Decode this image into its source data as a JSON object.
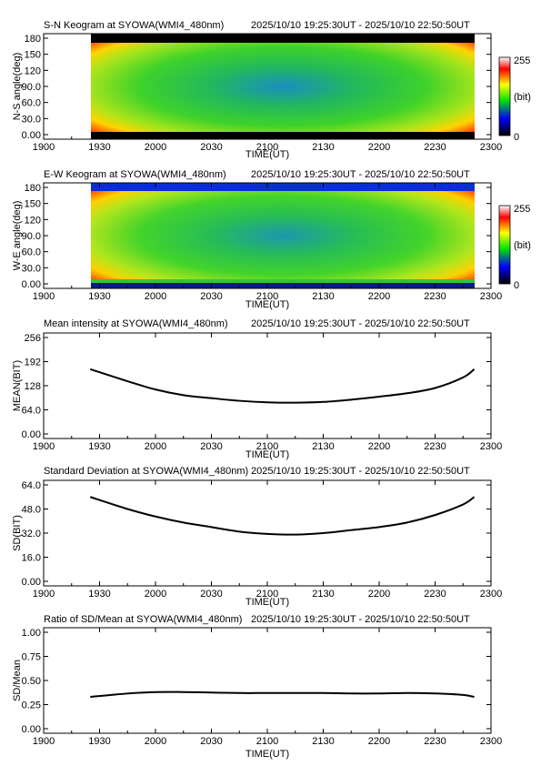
{
  "chart_data": [
    {
      "type": "heatmap",
      "title": "S-N Keogram at SYOWA(WMI4_480nm)",
      "time_range": "2025/10/10 19:25:30UT - 2025/10/10 22:50:50UT",
      "xlabel": "TIME(UT)",
      "ylabel": "N-S angle(deg)",
      "xticks": [
        "1900",
        "1930",
        "2000",
        "2030",
        "2100",
        "2130",
        "2200",
        "2230",
        "2300"
      ],
      "yticks": [
        "0.00",
        "30.0",
        "60.0",
        "90.0",
        "120",
        "150",
        "180"
      ],
      "ylim": [
        0,
        180
      ],
      "colorbar": {
        "min_label": "0",
        "max_label": "255",
        "unit_label": "(bit)",
        "colors": [
          "#000000",
          "#0000ff",
          "#00ff00",
          "#ffff00",
          "#ff0000",
          "#ffffff"
        ]
      }
    },
    {
      "type": "heatmap",
      "title": "E-W Keogram at SYOWA(WMI4_480nm)",
      "time_range": "2025/10/10 19:25:30UT - 2025/10/10 22:50:50UT",
      "xlabel": "TIME(UT)",
      "ylabel": "W-E angle(deg)",
      "xticks": [
        "1900",
        "1930",
        "2000",
        "2030",
        "2100",
        "2130",
        "2200",
        "2230",
        "2300"
      ],
      "yticks": [
        "0.00",
        "30.0",
        "60.0",
        "90.0",
        "120",
        "150",
        "180"
      ],
      "ylim": [
        0,
        180
      ],
      "colorbar": {
        "min_label": "0",
        "max_label": "255",
        "unit_label": "(bit)",
        "colors": [
          "#000000",
          "#0000ff",
          "#00ff00",
          "#ffff00",
          "#ff0000",
          "#ffffff"
        ]
      }
    },
    {
      "type": "line",
      "title": "Mean intensity at SYOWA(WMI4_480nm)",
      "time_range": "2025/10/10 19:25:30UT - 2025/10/10 22:50:50UT",
      "xlabel": "TIME(UT)",
      "ylabel": "MEAN(BIT)",
      "xticks": [
        "1900",
        "1930",
        "2000",
        "2030",
        "2100",
        "2130",
        "2200",
        "2230",
        "2300"
      ],
      "yticks": [
        "0.00",
        "64.0",
        "128",
        "192",
        "256"
      ],
      "ylim": [
        0,
        256
      ],
      "series": [
        {
          "x": [
            "19:25",
            "19:45",
            "20:00",
            "20:15",
            "20:30",
            "20:45",
            "21:00",
            "21:15",
            "21:30",
            "21:45",
            "22:00",
            "22:15",
            "22:30",
            "22:45",
            "22:51"
          ],
          "values": [
            172,
            140,
            118,
            103,
            95,
            88,
            84,
            83,
            85,
            91,
            99,
            108,
            122,
            150,
            172
          ]
        }
      ]
    },
    {
      "type": "line",
      "title": "Standard Deviation at SYOWA(WMI4_480nm)",
      "time_range": "2025/10/10 19:25:30UT - 2025/10/10 22:50:50UT",
      "xlabel": "TIME(UT)",
      "ylabel": "SD(BIT)",
      "xticks": [
        "1900",
        "1930",
        "2000",
        "2030",
        "2100",
        "2130",
        "2200",
        "2230",
        "2300"
      ],
      "yticks": [
        "0.00",
        "16.0",
        "32.0",
        "48.0",
        "64.0"
      ],
      "ylim": [
        0,
        64
      ],
      "series": [
        {
          "x": [
            "19:25",
            "19:45",
            "20:00",
            "20:15",
            "20:30",
            "20:45",
            "21:00",
            "21:15",
            "21:30",
            "21:45",
            "22:00",
            "22:15",
            "22:30",
            "22:45",
            "22:51"
          ],
          "values": [
            56,
            48,
            43,
            39,
            36,
            33,
            31.5,
            31,
            32,
            34,
            36,
            39,
            44,
            51,
            56
          ]
        }
      ]
    },
    {
      "type": "line",
      "title": "Ratio of SD/Mean at SYOWA(WMI4_480nm)",
      "time_range": "2025/10/10 19:25:30UT - 2025/10/10 22:50:50UT",
      "xlabel": "TIME(UT)",
      "ylabel": "SD/Mean",
      "xticks": [
        "1900",
        "1930",
        "2000",
        "2030",
        "2100",
        "2130",
        "2200",
        "2230",
        "2300"
      ],
      "yticks": [
        "0.00",
        "0.25",
        "0.50",
        "0.75",
        "1.00"
      ],
      "ylim": [
        0,
        1
      ],
      "series": [
        {
          "x": [
            "19:25",
            "19:45",
            "20:00",
            "20:15",
            "20:30",
            "20:45",
            "21:00",
            "21:15",
            "21:30",
            "21:45",
            "22:00",
            "22:15",
            "22:30",
            "22:45",
            "22:51"
          ],
          "values": [
            0.33,
            0.365,
            0.38,
            0.38,
            0.375,
            0.37,
            0.37,
            0.37,
            0.37,
            0.365,
            0.365,
            0.37,
            0.365,
            0.35,
            0.33
          ]
        }
      ]
    }
  ]
}
